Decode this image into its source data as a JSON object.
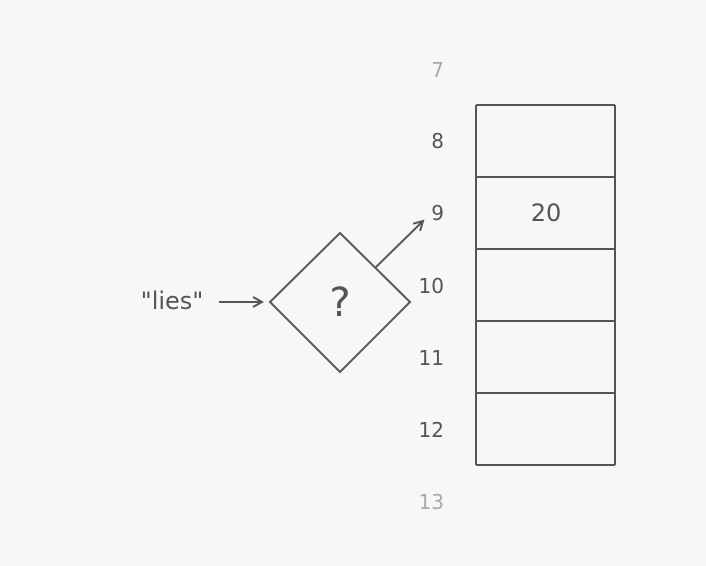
{
  "input_key": "\"lies\"",
  "hash_function_symbol": "?",
  "colors": {
    "background": "#f7f7f7",
    "stroke": "#555555",
    "label": "#555555",
    "faded_label": "#aaaaaa"
  },
  "table": {
    "rows": [
      {
        "index": "7",
        "value": "",
        "faded": true
      },
      {
        "index": "8",
        "value": ""
      },
      {
        "index": "9",
        "value": "20",
        "target": true
      },
      {
        "index": "10",
        "value": ""
      },
      {
        "index": "11",
        "value": ""
      },
      {
        "index": "12",
        "value": ""
      },
      {
        "index": "13",
        "value": "",
        "faded": true
      }
    ]
  }
}
